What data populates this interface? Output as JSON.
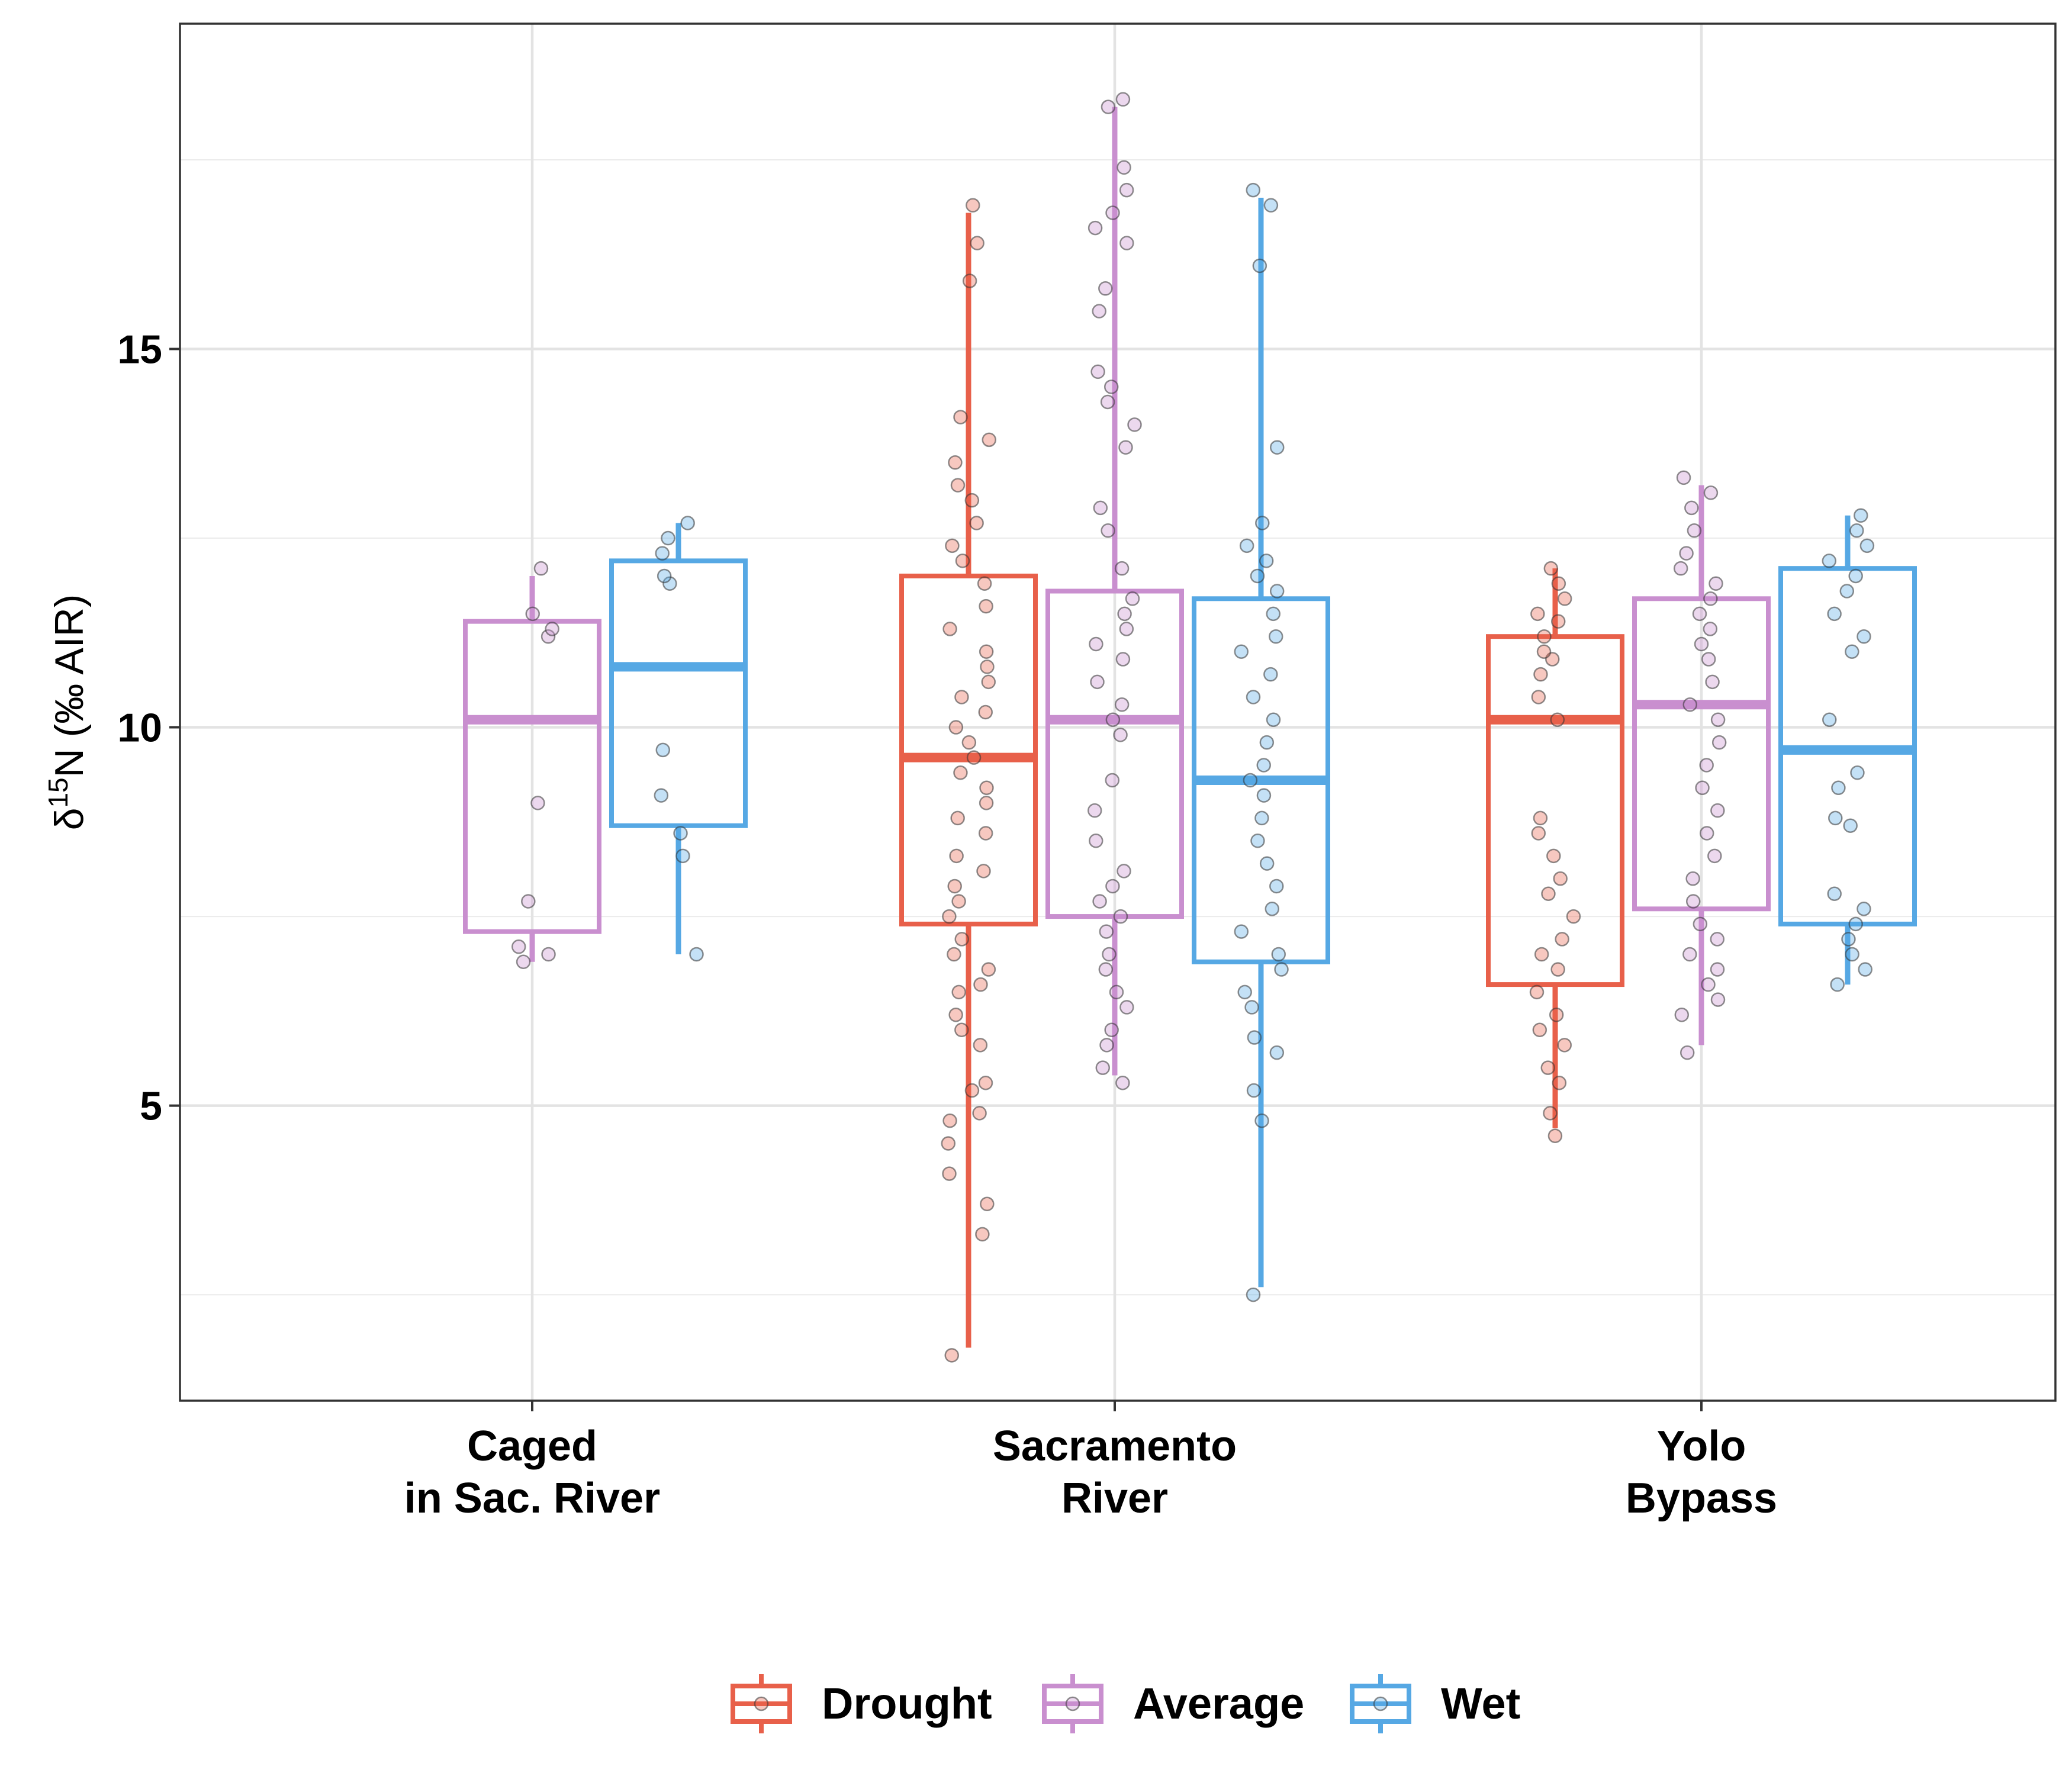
{
  "chart_data": {
    "type": "box",
    "title": "",
    "xlabel": "",
    "ylabel": {
      "prefix": "δ",
      "superscript": "15",
      "suffix": "N (‰ AIR)"
    },
    "ylim": [
      1.1,
      19.3
    ],
    "yticks": [
      5,
      10,
      15
    ],
    "grid": true,
    "legend_position": "bottom",
    "categories": [
      [
        "Caged",
        "in Sac. River"
      ],
      [
        "Sacramento",
        "River"
      ],
      [
        "Yolo",
        "Bypass"
      ]
    ],
    "series": [
      {
        "name": "Drought",
        "color": "#E8604A",
        "boxes": [
          null,
          {
            "q1": 7.4,
            "median": 9.6,
            "q3": 12.0,
            "whisker_low": 1.8,
            "whisker_high": 16.8,
            "points": [
              1.7,
              3.3,
              3.7,
              4.1,
              4.5,
              4.8,
              4.9,
              5.2,
              5.3,
              5.8,
              6.0,
              6.2,
              6.5,
              6.6,
              6.8,
              7.0,
              7.2,
              7.5,
              7.7,
              7.9,
              8.1,
              8.3,
              8.6,
              8.8,
              9.0,
              9.2,
              9.4,
              9.6,
              9.8,
              10.0,
              10.2,
              10.4,
              10.6,
              10.8,
              11.0,
              11.3,
              11.6,
              11.9,
              12.2,
              12.4,
              12.7,
              13.0,
              13.2,
              13.5,
              13.8,
              14.1,
              15.9,
              16.4,
              16.9
            ]
          },
          {
            "q1": 6.6,
            "median": 10.1,
            "q3": 11.2,
            "whisker_low": 4.7,
            "whisker_high": 12.1,
            "points": [
              4.6,
              4.9,
              5.3,
              5.5,
              5.8,
              6.0,
              6.2,
              6.5,
              6.8,
              7.0,
              7.2,
              7.5,
              7.8,
              8.0,
              8.3,
              8.6,
              8.8,
              10.1,
              10.4,
              10.7,
              10.9,
              11.0,
              11.2,
              11.4,
              11.5,
              11.7,
              11.9,
              12.1
            ]
          }
        ]
      },
      {
        "name": "Average",
        "color": "#C98FCF",
        "boxes": [
          {
            "q1": 7.3,
            "median": 10.1,
            "q3": 11.4,
            "whisker_low": 6.9,
            "whisker_high": 12.0,
            "points": [
              6.9,
              7.0,
              7.1,
              7.7,
              9.0,
              11.2,
              11.3,
              11.5,
              12.1
            ]
          },
          {
            "q1": 7.5,
            "median": 10.1,
            "q3": 11.8,
            "whisker_low": 5.4,
            "whisker_high": 18.2,
            "points": [
              5.3,
              5.5,
              5.8,
              6.0,
              6.3,
              6.5,
              6.8,
              7.0,
              7.3,
              7.5,
              7.7,
              7.9,
              8.1,
              8.5,
              8.9,
              9.3,
              9.9,
              10.1,
              10.3,
              10.6,
              10.9,
              11.1,
              11.3,
              11.5,
              11.7,
              12.1,
              12.6,
              12.9,
              13.7,
              14.0,
              14.3,
              14.5,
              14.7,
              15.5,
              15.8,
              16.4,
              16.6,
              16.8,
              17.1,
              17.4,
              18.2,
              18.3
            ]
          },
          {
            "q1": 7.6,
            "median": 10.3,
            "q3": 11.7,
            "whisker_low": 5.8,
            "whisker_high": 13.2,
            "points": [
              5.7,
              6.2,
              6.4,
              6.6,
              6.8,
              7.0,
              7.2,
              7.4,
              7.7,
              8.0,
              8.3,
              8.6,
              8.9,
              9.2,
              9.5,
              9.8,
              10.1,
              10.3,
              10.6,
              10.9,
              11.1,
              11.3,
              11.5,
              11.7,
              11.9,
              12.1,
              12.3,
              12.6,
              12.9,
              13.1,
              13.3
            ]
          }
        ]
      },
      {
        "name": "Wet",
        "color": "#56A8E4",
        "boxes": [
          {
            "q1": 8.7,
            "median": 10.8,
            "q3": 12.2,
            "whisker_low": 7.0,
            "whisker_high": 12.7,
            "points": [
              7.0,
              8.3,
              8.6,
              9.1,
              9.7,
              11.9,
              12.0,
              12.3,
              12.5,
              12.7
            ]
          },
          {
            "q1": 6.9,
            "median": 9.3,
            "q3": 11.7,
            "whisker_low": 2.6,
            "whisker_high": 17.0,
            "points": [
              2.5,
              4.8,
              5.2,
              5.7,
              5.9,
              6.3,
              6.5,
              6.8,
              7.0,
              7.3,
              7.6,
              7.9,
              8.2,
              8.5,
              8.8,
              9.1,
              9.3,
              9.5,
              9.8,
              10.1,
              10.4,
              10.7,
              11.0,
              11.2,
              11.5,
              11.8,
              12.0,
              12.2,
              12.4,
              12.7,
              13.7,
              16.1,
              16.9,
              17.1
            ]
          },
          {
            "q1": 7.4,
            "median": 9.7,
            "q3": 12.1,
            "whisker_low": 6.6,
            "whisker_high": 12.8,
            "points": [
              6.6,
              6.8,
              7.0,
              7.2,
              7.4,
              7.6,
              7.8,
              8.7,
              8.8,
              9.2,
              9.4,
              10.1,
              11.0,
              11.2,
              11.5,
              11.8,
              12.0,
              12.2,
              12.4,
              12.6,
              12.8
            ]
          }
        ]
      }
    ]
  }
}
